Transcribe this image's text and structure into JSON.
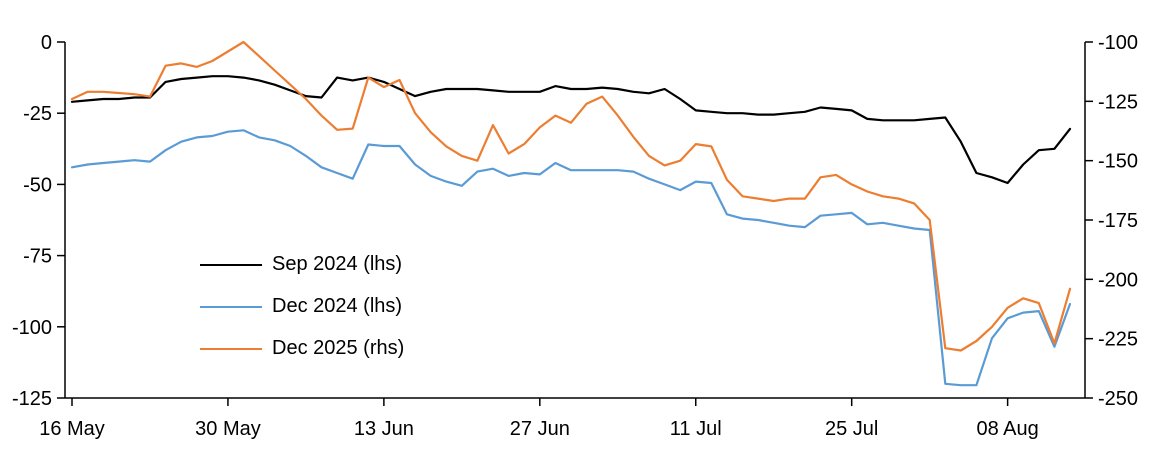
{
  "chart_data": {
    "type": "line",
    "title": "",
    "grid": false,
    "legend_position": "inside-left-lower",
    "x_tick_labels": [
      "16 May",
      "30 May",
      "13 Jun",
      "27 Jun",
      "11 Jul",
      "25 Jul",
      "08 Aug"
    ],
    "x_tick_indices": [
      0,
      10,
      20,
      30,
      40,
      50,
      60
    ],
    "left_axis": {
      "ticks": [
        0,
        -25,
        -50,
        -75,
        -100,
        -125
      ],
      "range": [
        -125,
        0
      ]
    },
    "right_axis": {
      "ticks": [
        -100,
        -125,
        -150,
        -175,
        -200,
        -225,
        -250
      ],
      "range": [
        -250,
        -100
      ]
    },
    "axis_color": "#000000",
    "series": [
      {
        "name": "Sep 2024 (lhs)",
        "axis": "left",
        "color": "#000000",
        "values": [
          -21,
          -20.5,
          -20,
          -20,
          -19.5,
          -19.5,
          -14,
          -13,
          -12.5,
          -12,
          -12,
          -12.5,
          -13.5,
          -15,
          -17,
          -19,
          -19.5,
          -12.5,
          -13.5,
          -12.5,
          -14,
          -16.5,
          -19,
          -17.5,
          -16.5,
          -16.5,
          -16.5,
          -17,
          -17.5,
          -17.5,
          -17.5,
          -15.5,
          -16.5,
          -16.5,
          -16,
          -16.5,
          -17.5,
          -18,
          -16.5,
          -20,
          -24,
          -24.5,
          -25,
          -25,
          -25.5,
          -25.5,
          -25,
          -24.5,
          -23,
          -23.5,
          -24,
          -27,
          -27.5,
          -27.5,
          -27.5,
          -27,
          -26.5,
          -35,
          -46,
          -47.5,
          -49.5,
          -43,
          -38,
          -37.5,
          -30.5
        ]
      },
      {
        "name": "Dec 2024 (lhs)",
        "axis": "left",
        "color": "#5B9BD5",
        "values": [
          -44,
          -43,
          -42.5,
          -42,
          -41.5,
          -42,
          -38,
          -35,
          -33.5,
          -33,
          -31.5,
          -31,
          -33.5,
          -34.5,
          -36.5,
          -40,
          -44,
          -46,
          -48,
          -36,
          -36.5,
          -36.5,
          -43,
          -47,
          -49,
          -50.5,
          -45.5,
          -44.5,
          -47,
          -46,
          -46.5,
          -42.5,
          -45,
          -45,
          -45,
          -45,
          -45.5,
          -48,
          -50,
          -52,
          -49,
          -49.5,
          -60.5,
          -62,
          -62.5,
          -63.5,
          -64.5,
          -65,
          -61,
          -60.5,
          -60,
          -64,
          -63.5,
          -64.5,
          -65.5,
          -66,
          -120,
          -120.5,
          -120.5,
          -104,
          -97,
          -95,
          -94.5,
          -107,
          -92
        ]
      },
      {
        "name": "Dec 2025 (rhs)",
        "axis": "right",
        "color": "#ED7D31",
        "values": [
          -124,
          -121,
          -121,
          -121.5,
          -122,
          -123,
          -110,
          -109,
          -110.5,
          -108,
          -104,
          -100,
          -106,
          -112,
          -118,
          -124,
          -131,
          -137,
          -136.5,
          -115,
          -119,
          -116,
          -130,
          -138,
          -144,
          -148,
          -150,
          -135,
          -147,
          -143,
          -136,
          -131,
          -134,
          -126,
          -123,
          -131,
          -140,
          -148,
          -152,
          -150,
          -143,
          -144,
          -158,
          -165,
          -166,
          -167,
          -166,
          -166,
          -157,
          -156,
          -160,
          -163,
          -165,
          -166,
          -168,
          -175,
          -229,
          -230,
          -226,
          -220,
          -212,
          -208,
          -210,
          -227,
          -204
        ]
      }
    ]
  }
}
